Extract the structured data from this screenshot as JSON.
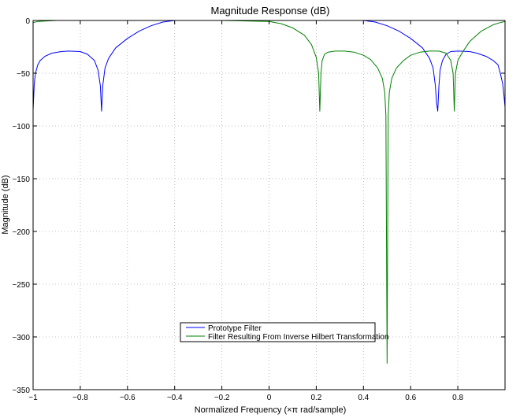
{
  "chart_data": {
    "type": "line",
    "title": "Magnitude Response (dB)",
    "xlabel": "Normalized Frequency (×π rad/sample)",
    "ylabel": "Magnitude (dB)",
    "xlim": [
      -1,
      1
    ],
    "ylim": [
      -350,
      0
    ],
    "xticks": [
      -1,
      -0.8,
      -0.6,
      -0.4,
      -0.2,
      0,
      0.2,
      0.4,
      0.6,
      0.8
    ],
    "xtick_labels": [
      "−1",
      "−0.8",
      "−0.6",
      "−0.4",
      "−0.2",
      "0",
      "0.2",
      "0.4",
      "0.6",
      "0.8"
    ],
    "yticks": [
      0,
      -50,
      -100,
      -150,
      -200,
      -250,
      -300,
      -350
    ],
    "ytick_labels": [
      "0",
      "−50",
      "−100",
      "−150",
      "−200",
      "−250",
      "−300",
      "−350"
    ],
    "grid": true,
    "legend_position": "lower-center",
    "series": [
      {
        "name": "Prototype Filter",
        "color": "#0000ff",
        "x": [
          -1.0,
          -0.995,
          -0.99,
          -0.98,
          -0.97,
          -0.95,
          -0.92,
          -0.88,
          -0.85,
          -0.8,
          -0.77,
          -0.74,
          -0.725,
          -0.715,
          -0.71,
          -0.705,
          -0.695,
          -0.68,
          -0.65,
          -0.6,
          -0.55,
          -0.5,
          -0.45,
          -0.4,
          -0.35,
          -0.3,
          -0.2,
          -0.1,
          0.0,
          0.1,
          0.2,
          0.3,
          0.35,
          0.4,
          0.45,
          0.5,
          0.55,
          0.6,
          0.65,
          0.68,
          0.695,
          0.705,
          0.71,
          0.715,
          0.72,
          0.725,
          0.735,
          0.75,
          0.77,
          0.8,
          0.85,
          0.88,
          0.92,
          0.95,
          0.97,
          0.98,
          0.99,
          0.995,
          1.0
        ],
        "y": [
          -85,
          -60,
          -50,
          -42,
          -38,
          -34,
          -31,
          -29.5,
          -29,
          -29.5,
          -32,
          -38,
          -47,
          -62,
          -86,
          -62,
          -45,
          -36,
          -26,
          -17,
          -10,
          -5,
          -1.5,
          0,
          0,
          0,
          0,
          0,
          0,
          0,
          0,
          0,
          0,
          0,
          -1.5,
          -5,
          -10,
          -17,
          -26,
          -36,
          -45,
          -62,
          -78,
          -86,
          -62,
          -47,
          -38,
          -32,
          -29.5,
          -29,
          -29.5,
          -31,
          -34,
          -38,
          -42,
          -50,
          -60,
          -70,
          -82
        ]
      },
      {
        "name": "Filter Resulting From Inverse Hilbert Transformation",
        "color": "#008000",
        "x": [
          -1.0,
          -0.98,
          -0.95,
          -0.9,
          -0.85,
          -0.8,
          -0.7,
          -0.6,
          -0.4,
          -0.2,
          0.0,
          0.05,
          0.1,
          0.15,
          0.18,
          0.2,
          0.21,
          0.215,
          0.22,
          0.225,
          0.235,
          0.25,
          0.28,
          0.32,
          0.36,
          0.4,
          0.43,
          0.46,
          0.48,
          0.49,
          0.495,
          0.5,
          0.505,
          0.51,
          0.52,
          0.54,
          0.57,
          0.6,
          0.64,
          0.68,
          0.72,
          0.75,
          0.77,
          0.78,
          0.785,
          0.79,
          0.8,
          0.82,
          0.85,
          0.9,
          0.95,
          0.98,
          1.0
        ],
        "y": [
          -2,
          -1,
          -0.5,
          0,
          0,
          0,
          0,
          0,
          0,
          0,
          -1,
          -3,
          -7,
          -14,
          -23,
          -35,
          -50,
          -86,
          -50,
          -38,
          -32,
          -30,
          -29,
          -29,
          -30,
          -33,
          -37,
          -45,
          -55,
          -68,
          -90,
          -325,
          -90,
          -68,
          -55,
          -45,
          -38,
          -33,
          -30,
          -29,
          -29,
          -31,
          -38,
          -50,
          -86,
          -50,
          -38,
          -30,
          -20,
          -10,
          -4,
          -2,
          -1
        ]
      }
    ]
  }
}
